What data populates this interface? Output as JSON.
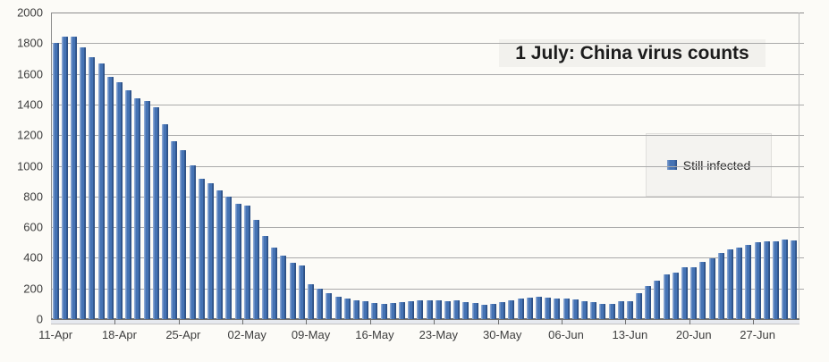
{
  "title": "1 July: China virus counts",
  "legend": {
    "label": "Still infected"
  },
  "colors": {
    "bar_light": "#8aa7d3",
    "bar_main": "#4573b4",
    "bar_dark": "#2d5085",
    "gridline": "#aaaaaa",
    "axis": "#707070",
    "background": "#fcfbf7",
    "title_bg": "#f2f1ed",
    "legend_bg": "#f4f3f0"
  },
  "chart_data": {
    "type": "bar",
    "title": "1 July: China virus counts",
    "series_name": "Still infected",
    "xlabel": "",
    "ylabel": "",
    "ylim": [
      0,
      2000
    ],
    "ytick_step": 200,
    "grid": "horizontal",
    "legend_position": "middle-right",
    "xtick_labels": [
      "11-Apr",
      "18-Apr",
      "25-Apr",
      "02-May",
      "09-May",
      "16-May",
      "23-May",
      "30-May",
      "06-Jun",
      "13-Jun",
      "20-Jun",
      "27-Jun"
    ],
    "xtick_every": 7,
    "x": [
      "11-Apr",
      "12-Apr",
      "13-Apr",
      "14-Apr",
      "15-Apr",
      "16-Apr",
      "17-Apr",
      "18-Apr",
      "19-Apr",
      "20-Apr",
      "21-Apr",
      "22-Apr",
      "23-Apr",
      "24-Apr",
      "25-Apr",
      "26-Apr",
      "27-Apr",
      "28-Apr",
      "29-Apr",
      "30-Apr",
      "01-May",
      "02-May",
      "03-May",
      "04-May",
      "05-May",
      "06-May",
      "07-May",
      "08-May",
      "09-May",
      "10-May",
      "11-May",
      "12-May",
      "13-May",
      "14-May",
      "15-May",
      "16-May",
      "17-May",
      "18-May",
      "19-May",
      "20-May",
      "21-May",
      "22-May",
      "23-May",
      "24-May",
      "25-May",
      "26-May",
      "27-May",
      "28-May",
      "29-May",
      "30-May",
      "31-May",
      "01-Jun",
      "02-Jun",
      "03-Jun",
      "04-Jun",
      "05-Jun",
      "06-Jun",
      "07-Jun",
      "08-Jun",
      "09-Jun",
      "10-Jun",
      "11-Jun",
      "12-Jun",
      "13-Jun",
      "14-Jun",
      "15-Jun",
      "16-Jun",
      "17-Jun",
      "18-Jun",
      "19-Jun",
      "20-Jun",
      "21-Jun",
      "22-Jun",
      "23-Jun",
      "24-Jun",
      "25-Jun",
      "26-Jun",
      "27-Jun",
      "28-Jun",
      "29-Jun",
      "30-Jun",
      "01-Jul"
    ],
    "values": [
      1800,
      1845,
      1840,
      1770,
      1710,
      1665,
      1580,
      1545,
      1490,
      1440,
      1425,
      1380,
      1270,
      1160,
      1100,
      1000,
      915,
      885,
      840,
      800,
      755,
      740,
      650,
      540,
      465,
      412,
      365,
      350,
      228,
      200,
      172,
      148,
      132,
      123,
      114,
      106,
      100,
      106,
      112,
      114,
      120,
      124,
      124,
      116,
      120,
      110,
      104,
      96,
      100,
      110,
      120,
      136,
      140,
      148,
      140,
      136,
      132,
      126,
      116,
      112,
      102,
      102,
      114,
      118,
      170,
      214,
      248,
      290,
      306,
      340,
      340,
      376,
      396,
      434,
      455,
      464,
      482,
      500,
      508,
      508,
      520,
      512
    ]
  }
}
